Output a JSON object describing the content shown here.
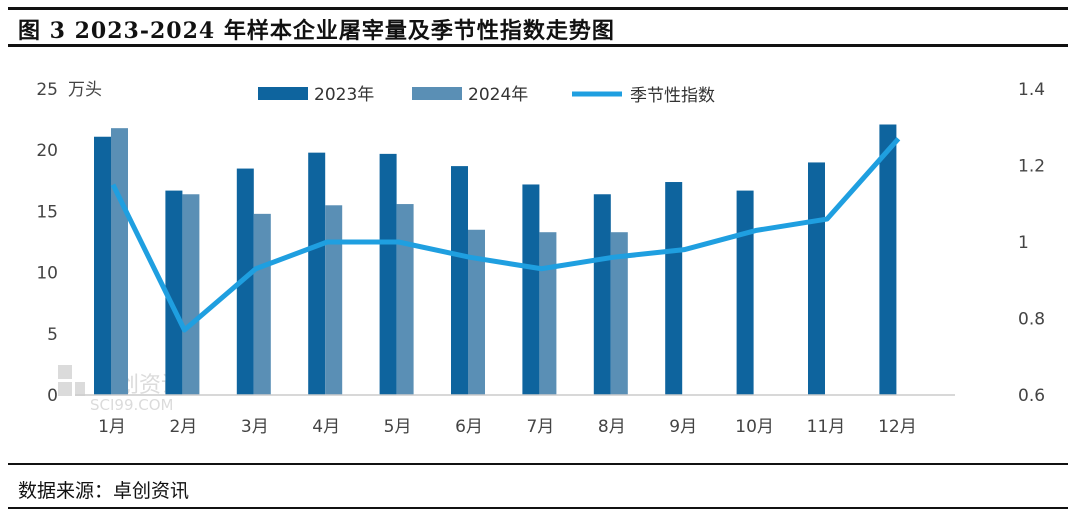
{
  "title": "图 3 2023-2024 年样本企业屠宰量及季节性指数走势图",
  "source": "数据来源：卓创资讯",
  "watermark": "卓创资讯 SCI99.COM",
  "chart_data": {
    "type": "bar+line",
    "categories": [
      "1月",
      "2月",
      "3月",
      "4月",
      "5月",
      "6月",
      "7月",
      "8月",
      "9月",
      "10月",
      "11月",
      "12月"
    ],
    "left_axis": {
      "unit_label": "万头",
      "ylim": [
        0,
        25
      ],
      "ticks": [
        "0",
        "5",
        "10",
        "15",
        "20",
        "25"
      ]
    },
    "right_axis": {
      "ylim": [
        0.6,
        1.4
      ],
      "ticks": [
        "0.6",
        "0.8",
        "1",
        "1.2",
        "1.4"
      ]
    },
    "series": [
      {
        "name": "2023年",
        "type": "bar",
        "axis": "left",
        "color": "#0e649e",
        "values": [
          21.1,
          16.7,
          18.5,
          19.8,
          19.7,
          18.7,
          17.2,
          16.4,
          17.4,
          16.7,
          19.0,
          22.1
        ]
      },
      {
        "name": "2024年",
        "type": "bar",
        "axis": "left",
        "color": "#5a8fb5",
        "values": [
          21.8,
          16.4,
          14.8,
          15.5,
          15.6,
          13.5,
          13.3,
          13.3,
          null,
          null,
          null,
          null
        ]
      },
      {
        "name": "季节性指数",
        "type": "line",
        "axis": "right",
        "color": "#1f9fe0",
        "values": [
          1.15,
          0.77,
          0.93,
          1.0,
          1.0,
          0.96,
          0.93,
          0.96,
          0.98,
          1.03,
          1.06,
          1.27
        ]
      }
    ],
    "grid": false,
    "legend_position": "top"
  }
}
